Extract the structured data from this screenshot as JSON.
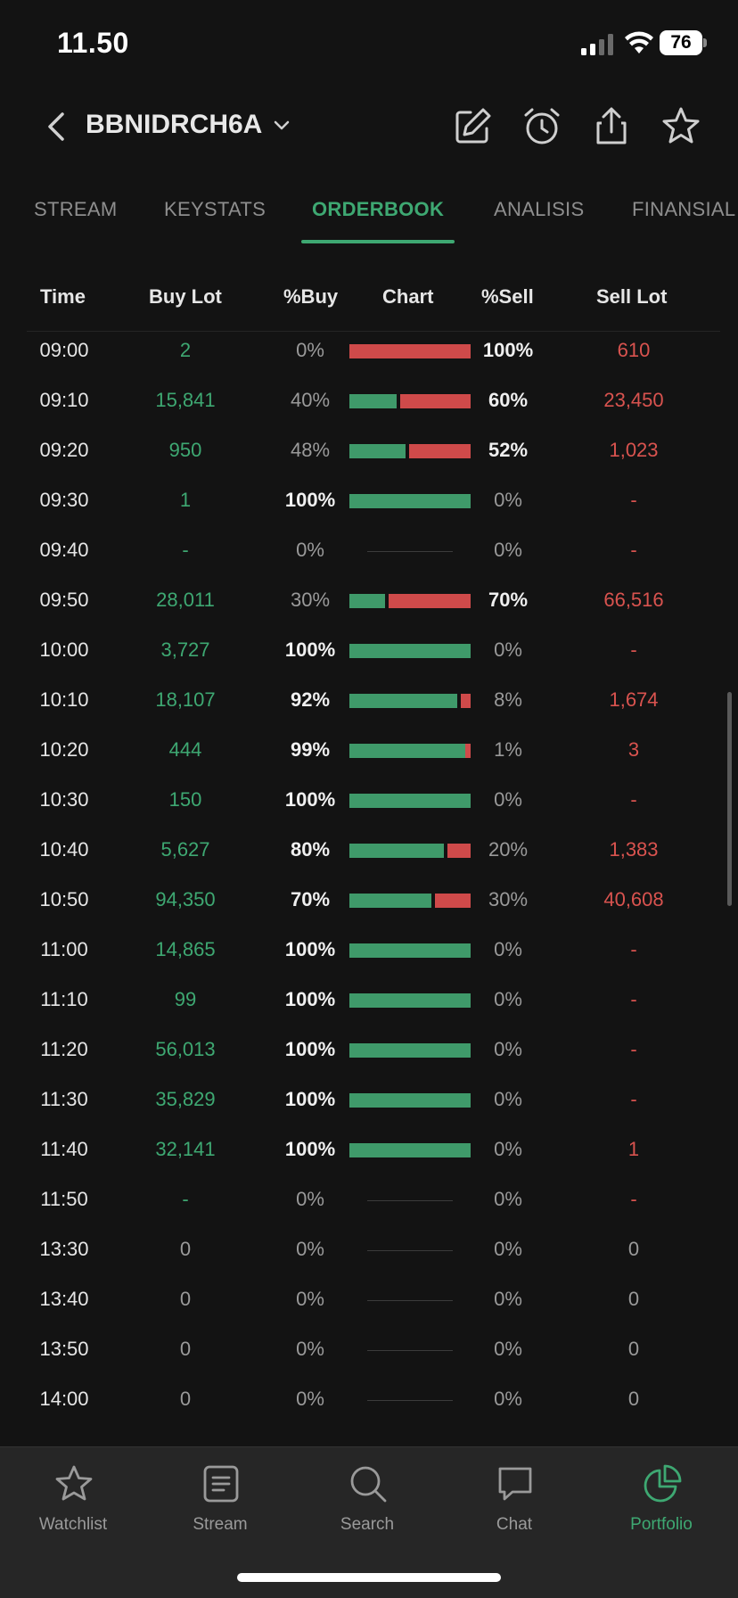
{
  "status_bar": {
    "time": "11.50",
    "battery": "76"
  },
  "header": {
    "ticker": "BBNIDRCH6A"
  },
  "tabs": [
    {
      "label": "STREAM",
      "active": false
    },
    {
      "label": "KEYSTATS",
      "active": false
    },
    {
      "label": "ORDERBOOK",
      "active": true
    },
    {
      "label": "ANALISIS",
      "active": false
    },
    {
      "label": "FINANSIAL",
      "active": false
    }
  ],
  "table": {
    "columns": [
      "Time",
      "Buy Lot",
      "%Buy",
      "Chart",
      "%Sell",
      "Sell Lot"
    ],
    "rows": [
      {
        "time": "09:00",
        "buy_lot": "2",
        "buy_pct": "0%",
        "sell_pct": "100%",
        "sell_lot": "610",
        "buy_frac": 0,
        "sell_frac": 1.0
      },
      {
        "time": "09:10",
        "buy_lot": "15,841",
        "buy_pct": "40%",
        "sell_pct": "60%",
        "sell_lot": "23,450",
        "buy_frac": 0.4,
        "sell_frac": 0.6
      },
      {
        "time": "09:20",
        "buy_lot": "950",
        "buy_pct": "48%",
        "sell_pct": "52%",
        "sell_lot": "1,023",
        "buy_frac": 0.48,
        "sell_frac": 0.52
      },
      {
        "time": "09:30",
        "buy_lot": "1",
        "buy_pct": "100%",
        "sell_pct": "0%",
        "sell_lot": "-",
        "buy_frac": 1.0,
        "sell_frac": 0
      },
      {
        "time": "09:40",
        "buy_lot": "-",
        "buy_pct": "0%",
        "sell_pct": "0%",
        "sell_lot": "-",
        "buy_frac": 0,
        "sell_frac": 0
      },
      {
        "time": "09:50",
        "buy_lot": "28,011",
        "buy_pct": "30%",
        "sell_pct": "70%",
        "sell_lot": "66,516",
        "buy_frac": 0.3,
        "sell_frac": 0.7
      },
      {
        "time": "10:00",
        "buy_lot": "3,727",
        "buy_pct": "100%",
        "sell_pct": "0%",
        "sell_lot": "-",
        "buy_frac": 1.0,
        "sell_frac": 0
      },
      {
        "time": "10:10",
        "buy_lot": "18,107",
        "buy_pct": "92%",
        "sell_pct": "8%",
        "sell_lot": "1,674",
        "buy_frac": 0.92,
        "sell_frac": 0.08
      },
      {
        "time": "10:20",
        "buy_lot": "444",
        "buy_pct": "99%",
        "sell_pct": "1%",
        "sell_lot": "3",
        "buy_frac": 0.99,
        "sell_frac": 0.01
      },
      {
        "time": "10:30",
        "buy_lot": "150",
        "buy_pct": "100%",
        "sell_pct": "0%",
        "sell_lot": "-",
        "buy_frac": 1.0,
        "sell_frac": 0
      },
      {
        "time": "10:40",
        "buy_lot": "5,627",
        "buy_pct": "80%",
        "sell_pct": "20%",
        "sell_lot": "1,383",
        "buy_frac": 0.8,
        "sell_frac": 0.2
      },
      {
        "time": "10:50",
        "buy_lot": "94,350",
        "buy_pct": "70%",
        "sell_pct": "30%",
        "sell_lot": "40,608",
        "buy_frac": 0.7,
        "sell_frac": 0.3
      },
      {
        "time": "11:00",
        "buy_lot": "14,865",
        "buy_pct": "100%",
        "sell_pct": "0%",
        "sell_lot": "-",
        "buy_frac": 1.0,
        "sell_frac": 0
      },
      {
        "time": "11:10",
        "buy_lot": "99",
        "buy_pct": "100%",
        "sell_pct": "0%",
        "sell_lot": "-",
        "buy_frac": 1.0,
        "sell_frac": 0
      },
      {
        "time": "11:20",
        "buy_lot": "56,013",
        "buy_pct": "100%",
        "sell_pct": "0%",
        "sell_lot": "-",
        "buy_frac": 1.0,
        "sell_frac": 0
      },
      {
        "time": "11:30",
        "buy_lot": "35,829",
        "buy_pct": "100%",
        "sell_pct": "0%",
        "sell_lot": "-",
        "buy_frac": 1.0,
        "sell_frac": 0
      },
      {
        "time": "11:40",
        "buy_lot": "32,141",
        "buy_pct": "100%",
        "sell_pct": "0%",
        "sell_lot": "1",
        "buy_frac": 1.0,
        "sell_frac": 0
      },
      {
        "time": "11:50",
        "buy_lot": "-",
        "buy_pct": "0%",
        "sell_pct": "0%",
        "sell_lot": "-",
        "buy_frac": 0,
        "sell_frac": 0
      },
      {
        "time": "13:30",
        "buy_lot": "0",
        "buy_pct": "0%",
        "sell_pct": "0%",
        "sell_lot": "0",
        "buy_frac": 0,
        "sell_frac": 0
      },
      {
        "time": "13:40",
        "buy_lot": "0",
        "buy_pct": "0%",
        "sell_pct": "0%",
        "sell_lot": "0",
        "buy_frac": 0,
        "sell_frac": 0
      },
      {
        "time": "13:50",
        "buy_lot": "0",
        "buy_pct": "0%",
        "sell_pct": "0%",
        "sell_lot": "0",
        "buy_frac": 0,
        "sell_frac": 0
      },
      {
        "time": "14:00",
        "buy_lot": "0",
        "buy_pct": "0%",
        "sell_pct": "0%",
        "sell_lot": "0",
        "buy_frac": 0,
        "sell_frac": 0
      }
    ]
  },
  "bottom_nav": [
    {
      "label": "Watchlist",
      "icon": "star-icon",
      "active": false
    },
    {
      "label": "Stream",
      "icon": "stream-icon",
      "active": false
    },
    {
      "label": "Search",
      "icon": "search-icon",
      "active": false
    },
    {
      "label": "Chat",
      "icon": "chat-icon",
      "active": false
    },
    {
      "label": "Portfolio",
      "icon": "portfolio-icon",
      "active": true
    }
  ],
  "colors": {
    "buy": "#3ea872",
    "sell": "#d9534f",
    "background": "#131313",
    "accent": "#3ea872"
  }
}
